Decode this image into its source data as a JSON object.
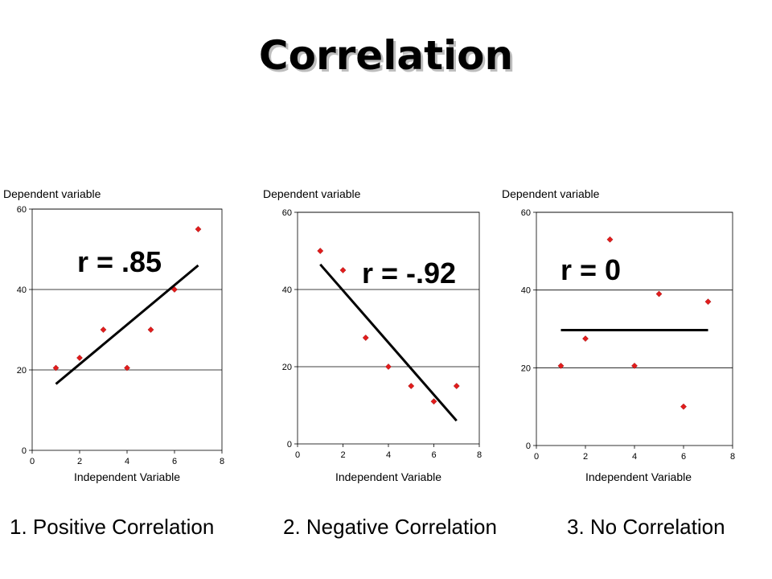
{
  "title": "Correlation",
  "chart_data": [
    {
      "type": "scatter",
      "ylabel": "Dependent variable",
      "xlabel": "Independent Variable",
      "annotation": "r = .85",
      "caption": "1. Positive Correlation",
      "xlim": [
        0,
        8
      ],
      "ylim": [
        0,
        60
      ],
      "xticks": [
        0,
        2,
        4,
        6,
        8
      ],
      "yticks": [
        0,
        20,
        40,
        60
      ],
      "grid": "horizontal",
      "points": [
        {
          "x": 1,
          "y": 20.5
        },
        {
          "x": 2,
          "y": 23
        },
        {
          "x": 3,
          "y": 30
        },
        {
          "x": 4,
          "y": 20.5
        },
        {
          "x": 5,
          "y": 30
        },
        {
          "x": 6,
          "y": 40
        },
        {
          "x": 7,
          "y": 55
        }
      ],
      "trendline": [
        {
          "x": 1,
          "y": 16.5
        },
        {
          "x": 7,
          "y": 46
        }
      ],
      "marker_color": "#e21c1c"
    },
    {
      "type": "scatter",
      "ylabel": "Dependent variable",
      "xlabel": "Independent Variable",
      "annotation": "r = -.92",
      "caption": "2. Negative Correlation",
      "xlim": [
        0,
        8
      ],
      "ylim": [
        0,
        60
      ],
      "xticks": [
        0,
        2,
        4,
        6,
        8
      ],
      "yticks": [
        0,
        20,
        40,
        60
      ],
      "grid": "horizontal",
      "points": [
        {
          "x": 1,
          "y": 50
        },
        {
          "x": 2,
          "y": 45
        },
        {
          "x": 3,
          "y": 27.5
        },
        {
          "x": 4,
          "y": 20
        },
        {
          "x": 5,
          "y": 15
        },
        {
          "x": 6,
          "y": 11
        },
        {
          "x": 7,
          "y": 15
        }
      ],
      "trendline": [
        {
          "x": 1,
          "y": 46.5
        },
        {
          "x": 7,
          "y": 6
        }
      ],
      "marker_color": "#e21c1c"
    },
    {
      "type": "scatter",
      "ylabel": "Dependent variable",
      "xlabel": "Independent Variable",
      "annotation": "r = 0",
      "caption": "3. No Correlation",
      "xlim": [
        0,
        8
      ],
      "ylim": [
        0,
        60
      ],
      "xticks": [
        0,
        2,
        4,
        6,
        8
      ],
      "yticks": [
        0,
        20,
        40,
        60
      ],
      "grid": "horizontal",
      "points": [
        {
          "x": 1,
          "y": 20.5
        },
        {
          "x": 2,
          "y": 27.5
        },
        {
          "x": 3,
          "y": 53
        },
        {
          "x": 4,
          "y": 20.5
        },
        {
          "x": 5,
          "y": 39
        },
        {
          "x": 6,
          "y": 10
        },
        {
          "x": 7,
          "y": 37
        }
      ],
      "trendline": [
        {
          "x": 1,
          "y": 29.7
        },
        {
          "x": 7,
          "y": 29.7
        }
      ],
      "marker_color": "#e21c1c"
    }
  ]
}
